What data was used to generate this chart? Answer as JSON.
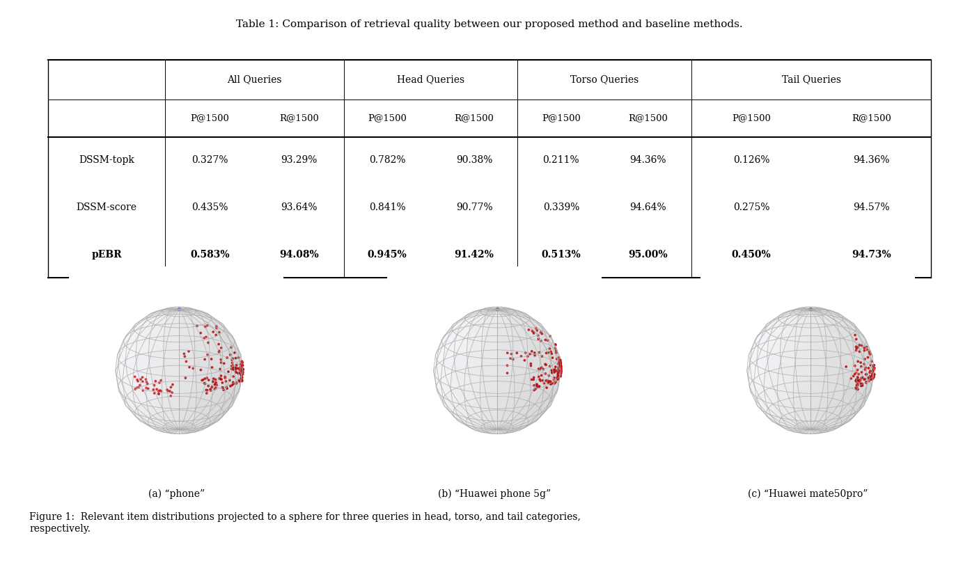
{
  "title": "Table 1: Comparison of retrieval quality between our proposed method and baseline methods.",
  "col_groups": [
    "All Queries",
    "Head Queries",
    "Torso Queries",
    "Tail Queries"
  ],
  "col_headers": [
    "P@1500",
    "R@1500",
    "P@1500",
    "R@1500",
    "P@1500",
    "R@1500",
    "P@1500",
    "R@1500"
  ],
  "row_labels": [
    "DSSM-topk",
    "DSSM-score",
    "pEBR"
  ],
  "table_data": [
    [
      "0.327%",
      "93.29%",
      "0.782%",
      "90.38%",
      "0.211%",
      "94.36%",
      "0.126%",
      "94.36%"
    ],
    [
      "0.435%",
      "93.64%",
      "0.841%",
      "90.77%",
      "0.339%",
      "94.64%",
      "0.275%",
      "94.57%"
    ],
    [
      "0.583%",
      "94.08%",
      "0.945%",
      "91.42%",
      "0.513%",
      "95.00%",
      "0.450%",
      "94.73%"
    ]
  ],
  "bold_row": 2,
  "subfig_labels": [
    "(a) “phone”",
    "(b) “Huawei phone 5g”",
    "(c) “Huawei mate50pro”"
  ],
  "figure_caption": "Figure 1:  Relevant item distributions projected to a sphere for three queries in head, torso, and tail categories,\nrespectively.",
  "bg_color": "#ffffff",
  "globe_line_color": "#aaaaaa",
  "globe_face_color": "#e0e0ee",
  "red_dot_color": "#cc0000",
  "blue_dot_color": "#3333aa",
  "sphere1_dots": {
    "cluster1": {
      "theta_range": [
        -0.7,
        0.5
      ],
      "phi_range": [
        1.35,
        1.62
      ],
      "n": 80
    },
    "cluster2": {
      "theta_range": [
        -1.8,
        -1.1
      ],
      "phi_range": [
        1.38,
        1.62
      ],
      "n": 35
    },
    "cluster3": {
      "theta_range": [
        0.3,
        1.1
      ],
      "phi_range": [
        1.52,
        1.72
      ],
      "n": 22
    },
    "scatter1": {
      "theta_range": [
        -1.0,
        0.4
      ],
      "phi_range": [
        0.9,
        1.35
      ],
      "n": 28
    },
    "scatter2": {
      "theta_range": [
        -0.5,
        0.3
      ],
      "phi_range": [
        0.5,
        0.9
      ],
      "n": 12
    }
  },
  "sphere2_dots": {
    "cluster1": {
      "theta_range": [
        -0.5,
        0.7
      ],
      "phi_range": [
        1.38,
        1.62
      ],
      "n": 95
    },
    "scatter1": {
      "theta_range": [
        -0.9,
        0.6
      ],
      "phi_range": [
        0.95,
        1.38
      ],
      "n": 45
    },
    "scatter2": {
      "theta_range": [
        -0.3,
        0.2
      ],
      "phi_range": [
        0.65,
        0.95
      ],
      "n": 12
    }
  },
  "sphere3_dots": {
    "cluster1": {
      "theta_range": [
        -0.3,
        0.5
      ],
      "phi_range": [
        1.42,
        1.62
      ],
      "n": 65
    },
    "scatter1": {
      "theta_range": [
        -0.45,
        0.35
      ],
      "phi_range": [
        1.05,
        1.42
      ],
      "n": 28
    },
    "scatter2": {
      "theta_range": [
        -0.15,
        0.2
      ],
      "phi_range": [
        0.8,
        1.05
      ],
      "n": 8
    }
  }
}
